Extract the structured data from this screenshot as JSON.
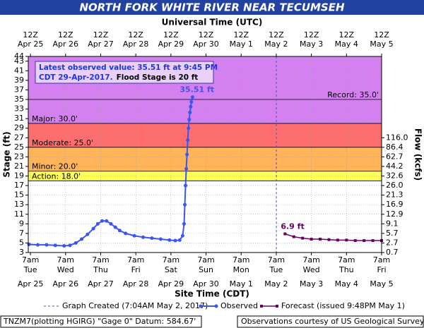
{
  "chart_data": {
    "type": "line",
    "title": "NORTH FORK WHITE RIVER NEAR TECUMSEH",
    "x2label": "Universal Time (UTC)",
    "xlabel": "Site Time (CDT)",
    "ylabel": "Stage (ft)",
    "y2label": "Flow (kcfs)",
    "xlim": [
      "Apr 25 05:30",
      "May 5 07:00"
    ],
    "ylim": [
      3,
      44
    ],
    "yticks": [
      3,
      5,
      7,
      9,
      11,
      13,
      15,
      17,
      19,
      21,
      23,
      25,
      27,
      29,
      31,
      33,
      35,
      37,
      39,
      41,
      43,
      44
    ],
    "y2ticks": [
      {
        "value": 0.7,
        "label": "0.7",
        "stage": 3
      },
      {
        "value": 2.7,
        "label": "2.7",
        "stage": 5
      },
      {
        "value": 5.7,
        "label": "5.7",
        "stage": 7
      },
      {
        "value": 9.1,
        "label": "9.1",
        "stage": 9
      },
      {
        "value": 12.9,
        "label": "12.9",
        "stage": 11
      },
      {
        "value": 16.9,
        "label": "16.9",
        "stage": 13
      },
      {
        "value": 21.3,
        "label": "21.3",
        "stage": 15
      },
      {
        "value": 26.0,
        "label": "26.0",
        "stage": 17
      },
      {
        "value": 32.6,
        "label": "32.6",
        "stage": 19
      },
      {
        "value": 44.2,
        "label": "44.2",
        "stage": 21
      },
      {
        "value": 62.7,
        "label": "62.7",
        "stage": 23
      },
      {
        "value": 86.4,
        "label": "86.4",
        "stage": 25
      },
      {
        "value": 116.0,
        "label": "116.0",
        "stage": 27
      }
    ],
    "xticks": [
      {
        "value": "Apr 25 07:00",
        "label": "7am",
        "weekday": "Tue",
        "date": "Apr 25"
      },
      {
        "value": "Apr 26 07:00",
        "label": "7am",
        "weekday": "Wed",
        "date": "Apr 26"
      },
      {
        "value": "Apr 27 07:00",
        "label": "7am",
        "weekday": "Thu",
        "date": "Apr 27"
      },
      {
        "value": "Apr 28 07:00",
        "label": "7am",
        "weekday": "Fri",
        "date": "Apr 28"
      },
      {
        "value": "Apr 29 07:00",
        "label": "7am",
        "weekday": "Sat",
        "date": "Apr 29"
      },
      {
        "value": "Apr 30 07:00",
        "label": "7am",
        "weekday": "Sun",
        "date": "Apr 30"
      },
      {
        "value": "May 1 07:00",
        "label": "7am",
        "weekday": "Mon",
        "date": "May 1"
      },
      {
        "value": "May 2 07:00",
        "label": "7am",
        "weekday": "Tue",
        "date": "May 2"
      },
      {
        "value": "May 3 07:00",
        "label": "7am",
        "weekday": "Wed",
        "date": "May 3"
      },
      {
        "value": "May 4 07:00",
        "label": "7am",
        "weekday": "Thu",
        "date": "May 4"
      },
      {
        "value": "May 5 07:00",
        "label": "7am",
        "weekday": "Fri",
        "date": "May 5"
      }
    ],
    "x2ticks": [
      {
        "value": "Apr 25 07:00",
        "label": "12Z",
        "date": "Apr 25"
      },
      {
        "value": "Apr 26 07:00",
        "label": "12Z",
        "date": "Apr 26"
      },
      {
        "value": "Apr 27 07:00",
        "label": "12Z",
        "date": "Apr 27"
      },
      {
        "value": "Apr 28 07:00",
        "label": "12Z",
        "date": "Apr 28"
      },
      {
        "value": "Apr 29 07:00",
        "label": "12Z",
        "date": "Apr 29"
      },
      {
        "value": "Apr 30 07:00",
        "label": "12Z",
        "date": "Apr 30"
      },
      {
        "value": "May 1 07:00",
        "label": "12Z",
        "date": "May 1"
      },
      {
        "value": "May 2 07:00",
        "label": "12Z",
        "date": "May 2"
      },
      {
        "value": "May 3 07:00",
        "label": "12Z",
        "date": "May 3"
      },
      {
        "value": "May 4 07:00",
        "label": "12Z",
        "date": "May 4"
      },
      {
        "value": "May 5 07:00",
        "label": "12Z",
        "date": "May 5"
      }
    ],
    "grid": true,
    "flood_stages": [
      {
        "label": "Major: 30.0'",
        "value": 30,
        "color": "#d580f0"
      },
      {
        "label": "Moderate: 25.0'",
        "value": 25,
        "color": "#ff6e6e"
      },
      {
        "label": "Minor: 20.0'",
        "value": 20,
        "color": "#ffb45a"
      },
      {
        "label": "Action: 18.0'",
        "value": 18,
        "color": "#ffff5a"
      }
    ],
    "record": {
      "label": "Record: 35.0'",
      "value": 35
    },
    "annotation": {
      "line1": "Latest observed value: 35.51 ft at 9:45 PM",
      "line2a": "CDT 29-Apr-2017.",
      "line2b": "Flood Stage is 20 ft"
    },
    "graph_created": {
      "name": "Graph Created (7:04AM May 2, 2017)",
      "x": "May 2 07:04"
    },
    "series": [
      {
        "name": "Observed",
        "color": "#3a55f0",
        "point_label": "35.51 ft",
        "x": [
          "Apr 25 06:00",
          "Apr 25 12:00",
          "Apr 25 18:00",
          "Apr 26 00:00",
          "Apr 26 06:00",
          "Apr 26 10:00",
          "Apr 26 14:00",
          "Apr 26 18:00",
          "Apr 26 22:00",
          "Apr 27 02:00",
          "Apr 27 05:00",
          "Apr 27 08:00",
          "Apr 27 11:00",
          "Apr 27 14:00",
          "Apr 27 17:00",
          "Apr 27 20:00",
          "Apr 28 00:00",
          "Apr 28 06:00",
          "Apr 28 12:00",
          "Apr 28 18:00",
          "Apr 29 00:00",
          "Apr 29 06:00",
          "Apr 29 10:00",
          "Apr 29 13:00",
          "Apr 29 15:00",
          "Apr 29 16:00",
          "Apr 29 16:30",
          "Apr 29 17:00",
          "Apr 29 17:30",
          "Apr 29 18:00",
          "Apr 29 18:30",
          "Apr 29 19:00",
          "Apr 29 19:30",
          "Apr 29 20:00",
          "Apr 29 20:30",
          "Apr 29 21:00",
          "Apr 29 21:45"
        ],
        "values": [
          4.7,
          4.6,
          4.6,
          4.5,
          4.4,
          4.5,
          5.0,
          5.8,
          6.8,
          8.0,
          9.0,
          9.6,
          9.6,
          9.0,
          8.3,
          7.6,
          7.0,
          6.5,
          6.2,
          6.0,
          5.8,
          5.6,
          5.5,
          5.6,
          6.5,
          9.0,
          13,
          17,
          20.5,
          23.5,
          26.5,
          29,
          30.8,
          32.3,
          33.5,
          34.5,
          35.51
        ]
      },
      {
        "name": "Forecast (issued 9:48PM May 1)",
        "color": "#660066",
        "point_label": "6.9 ft",
        "x": [
          "May 2 13:00",
          "May 2 19:00",
          "May 3 01:00",
          "May 3 07:00",
          "May 3 13:00",
          "May 3 19:00",
          "May 4 01:00",
          "May 4 07:00",
          "May 4 13:00",
          "May 4 19:00",
          "May 5 01:00",
          "May 5 07:00"
        ],
        "values": [
          6.9,
          6.3,
          6.0,
          5.8,
          5.8,
          5.7,
          5.6,
          5.6,
          5.5,
          5.5,
          5.5,
          5.5
        ]
      }
    ],
    "footer_left": "TNZM7(plotting HGIRG) \"Gage 0\" Datum: 584.67'",
    "footer_right": "Observations courtesy of US Geological Survey"
  }
}
